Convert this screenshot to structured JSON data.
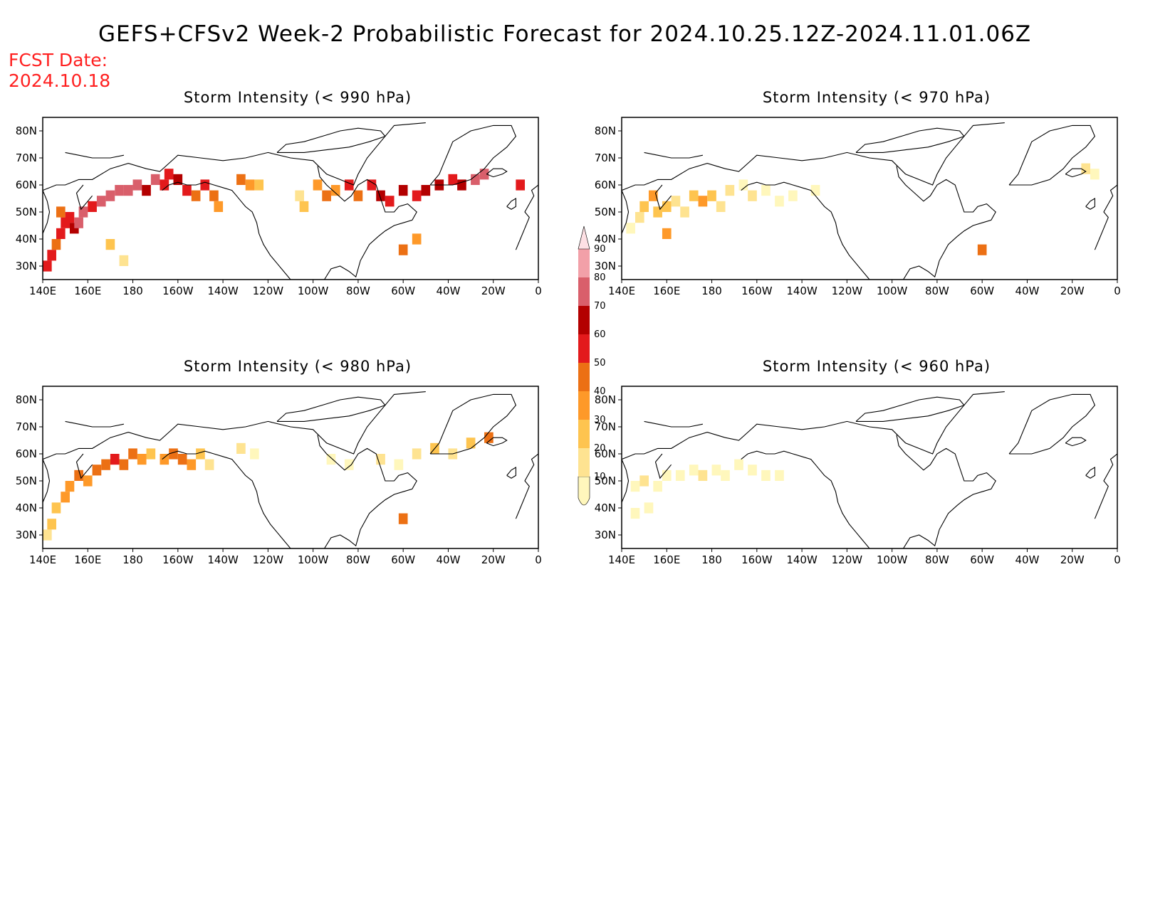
{
  "header": {
    "title": "GEFS+CFSv2 Week-2 Probabilistic Forecast for 2024.10.25.12Z-2024.11.01.06Z",
    "fcst_label": "FCST Date:",
    "fcst_value": "2024.10.18"
  },
  "axes": {
    "lon_labels": [
      "140E",
      "160E",
      "180",
      "160W",
      "140W",
      "120W",
      "100W",
      "80W",
      "60W",
      "40W",
      "20W",
      "0"
    ],
    "lat_labels": [
      "80N",
      "70N",
      "60N",
      "50N",
      "40N",
      "30N"
    ]
  },
  "legend": {
    "levels": [
      "10",
      "20",
      "30",
      "40",
      "50",
      "60",
      "70",
      "80",
      "90"
    ],
    "colors": [
      "#fff7bc",
      "#fee391",
      "#fec44f",
      "#fe9929",
      "#ec7014",
      "#e31a1c",
      "#b30000",
      "#d95f6b",
      "#f2a0a8",
      "#fde0e4"
    ]
  },
  "panels": [
    {
      "title": "Storm Intensity (< 990 hPa)"
    },
    {
      "title": "Storm Intensity (< 970 hPa)"
    },
    {
      "title": "Storm Intensity (< 980 hPa)"
    },
    {
      "title": "Storm Intensity (< 960 hPa)"
    }
  ],
  "chart_data": [
    {
      "type": "heatmap",
      "title": "Storm Intensity (< 990 hPa)",
      "x_range": [
        140,
        360
      ],
      "y_range": [
        25,
        85
      ],
      "cells": [
        {
          "lon": 142,
          "lat": 30,
          "v": 60
        },
        {
          "lon": 144,
          "lat": 34,
          "v": 60
        },
        {
          "lon": 146,
          "lat": 38,
          "v": 50
        },
        {
          "lon": 148,
          "lat": 42,
          "v": 60
        },
        {
          "lon": 150,
          "lat": 46,
          "v": 60
        },
        {
          "lon": 148,
          "lat": 50,
          "v": 50
        },
        {
          "lon": 152,
          "lat": 48,
          "v": 60
        },
        {
          "lon": 154,
          "lat": 44,
          "v": 70
        },
        {
          "lon": 156,
          "lat": 46,
          "v": 80
        },
        {
          "lon": 158,
          "lat": 50,
          "v": 80
        },
        {
          "lon": 162,
          "lat": 52,
          "v": 60
        },
        {
          "lon": 166,
          "lat": 54,
          "v": 80
        },
        {
          "lon": 170,
          "lat": 56,
          "v": 80
        },
        {
          "lon": 174,
          "lat": 58,
          "v": 80
        },
        {
          "lon": 178,
          "lat": 58,
          "v": 80
        },
        {
          "lon": 182,
          "lat": 60,
          "v": 80
        },
        {
          "lon": 186,
          "lat": 58,
          "v": 70
        },
        {
          "lon": 190,
          "lat": 62,
          "v": 80
        },
        {
          "lon": 194,
          "lat": 60,
          "v": 60
        },
        {
          "lon": 196,
          "lat": 64,
          "v": 60
        },
        {
          "lon": 200,
          "lat": 62,
          "v": 70
        },
        {
          "lon": 204,
          "lat": 58,
          "v": 60
        },
        {
          "lon": 208,
          "lat": 56,
          "v": 50
        },
        {
          "lon": 212,
          "lat": 60,
          "v": 60
        },
        {
          "lon": 216,
          "lat": 56,
          "v": 50
        },
        {
          "lon": 218,
          "lat": 52,
          "v": 40
        },
        {
          "lon": 228,
          "lat": 62,
          "v": 50
        },
        {
          "lon": 232,
          "lat": 60,
          "v": 40
        },
        {
          "lon": 236,
          "lat": 60,
          "v": 30
        },
        {
          "lon": 254,
          "lat": 56,
          "v": 20
        },
        {
          "lon": 256,
          "lat": 52,
          "v": 30
        },
        {
          "lon": 262,
          "lat": 60,
          "v": 40
        },
        {
          "lon": 266,
          "lat": 56,
          "v": 50
        },
        {
          "lon": 270,
          "lat": 58,
          "v": 40
        },
        {
          "lon": 276,
          "lat": 60,
          "v": 60
        },
        {
          "lon": 280,
          "lat": 56,
          "v": 50
        },
        {
          "lon": 286,
          "lat": 60,
          "v": 60
        },
        {
          "lon": 290,
          "lat": 56,
          "v": 70
        },
        {
          "lon": 294,
          "lat": 54,
          "v": 60
        },
        {
          "lon": 300,
          "lat": 58,
          "v": 70
        },
        {
          "lon": 306,
          "lat": 56,
          "v": 60
        },
        {
          "lon": 310,
          "lat": 58,
          "v": 70
        },
        {
          "lon": 316,
          "lat": 60,
          "v": 70
        },
        {
          "lon": 322,
          "lat": 62,
          "v": 60
        },
        {
          "lon": 326,
          "lat": 60,
          "v": 70
        },
        {
          "lon": 332,
          "lat": 62,
          "v": 80
        },
        {
          "lon": 336,
          "lat": 64,
          "v": 80
        },
        {
          "lon": 352,
          "lat": 60,
          "v": 60
        },
        {
          "lon": 306,
          "lat": 40,
          "v": 40
        },
        {
          "lon": 300,
          "lat": 36,
          "v": 50
        },
        {
          "lon": 176,
          "lat": 32,
          "v": 20
        },
        {
          "lon": 170,
          "lat": 38,
          "v": 30
        }
      ]
    },
    {
      "type": "heatmap",
      "title": "Storm Intensity (< 970 hPa)",
      "x_range": [
        140,
        360
      ],
      "y_range": [
        25,
        85
      ],
      "cells": [
        {
          "lon": 144,
          "lat": 44,
          "v": 10
        },
        {
          "lon": 148,
          "lat": 48,
          "v": 20
        },
        {
          "lon": 150,
          "lat": 52,
          "v": 30
        },
        {
          "lon": 154,
          "lat": 56,
          "v": 40
        },
        {
          "lon": 156,
          "lat": 50,
          "v": 30
        },
        {
          "lon": 160,
          "lat": 52,
          "v": 30
        },
        {
          "lon": 164,
          "lat": 54,
          "v": 20
        },
        {
          "lon": 168,
          "lat": 50,
          "v": 20
        },
        {
          "lon": 172,
          "lat": 56,
          "v": 30
        },
        {
          "lon": 176,
          "lat": 54,
          "v": 40
        },
        {
          "lon": 180,
          "lat": 56,
          "v": 30
        },
        {
          "lon": 184,
          "lat": 52,
          "v": 20
        },
        {
          "lon": 188,
          "lat": 58,
          "v": 20
        },
        {
          "lon": 194,
          "lat": 60,
          "v": 10
        },
        {
          "lon": 198,
          "lat": 56,
          "v": 20
        },
        {
          "lon": 204,
          "lat": 58,
          "v": 10
        },
        {
          "lon": 210,
          "lat": 54,
          "v": 10
        },
        {
          "lon": 216,
          "lat": 56,
          "v": 10
        },
        {
          "lon": 226,
          "lat": 58,
          "v": 10
        },
        {
          "lon": 346,
          "lat": 66,
          "v": 20
        },
        {
          "lon": 350,
          "lat": 64,
          "v": 10
        },
        {
          "lon": 300,
          "lat": 36,
          "v": 50
        },
        {
          "lon": 160,
          "lat": 42,
          "v": 40
        }
      ]
    },
    {
      "type": "heatmap",
      "title": "Storm Intensity (< 980 hPa)",
      "x_range": [
        140,
        360
      ],
      "y_range": [
        25,
        85
      ],
      "cells": [
        {
          "lon": 142,
          "lat": 30,
          "v": 20
        },
        {
          "lon": 144,
          "lat": 34,
          "v": 30
        },
        {
          "lon": 146,
          "lat": 40,
          "v": 30
        },
        {
          "lon": 150,
          "lat": 44,
          "v": 40
        },
        {
          "lon": 152,
          "lat": 48,
          "v": 40
        },
        {
          "lon": 156,
          "lat": 52,
          "v": 50
        },
        {
          "lon": 160,
          "lat": 50,
          "v": 40
        },
        {
          "lon": 164,
          "lat": 54,
          "v": 50
        },
        {
          "lon": 168,
          "lat": 56,
          "v": 50
        },
        {
          "lon": 172,
          "lat": 58,
          "v": 60
        },
        {
          "lon": 176,
          "lat": 56,
          "v": 50
        },
        {
          "lon": 180,
          "lat": 60,
          "v": 50
        },
        {
          "lon": 184,
          "lat": 58,
          "v": 40
        },
        {
          "lon": 188,
          "lat": 60,
          "v": 30
        },
        {
          "lon": 194,
          "lat": 58,
          "v": 40
        },
        {
          "lon": 198,
          "lat": 60,
          "v": 50
        },
        {
          "lon": 202,
          "lat": 58,
          "v": 50
        },
        {
          "lon": 206,
          "lat": 56,
          "v": 40
        },
        {
          "lon": 210,
          "lat": 60,
          "v": 30
        },
        {
          "lon": 214,
          "lat": 56,
          "v": 20
        },
        {
          "lon": 228,
          "lat": 62,
          "v": 20
        },
        {
          "lon": 234,
          "lat": 60,
          "v": 10
        },
        {
          "lon": 268,
          "lat": 58,
          "v": 10
        },
        {
          "lon": 276,
          "lat": 56,
          "v": 10
        },
        {
          "lon": 290,
          "lat": 58,
          "v": 20
        },
        {
          "lon": 298,
          "lat": 56,
          "v": 10
        },
        {
          "lon": 306,
          "lat": 60,
          "v": 20
        },
        {
          "lon": 314,
          "lat": 62,
          "v": 30
        },
        {
          "lon": 322,
          "lat": 60,
          "v": 20
        },
        {
          "lon": 330,
          "lat": 64,
          "v": 30
        },
        {
          "lon": 338,
          "lat": 66,
          "v": 50
        },
        {
          "lon": 300,
          "lat": 36,
          "v": 50
        }
      ]
    },
    {
      "type": "heatmap",
      "title": "Storm Intensity (< 960 hPa)",
      "x_range": [
        140,
        360
      ],
      "y_range": [
        25,
        85
      ],
      "cells": [
        {
          "lon": 146,
          "lat": 48,
          "v": 10
        },
        {
          "lon": 150,
          "lat": 50,
          "v": 20
        },
        {
          "lon": 156,
          "lat": 48,
          "v": 10
        },
        {
          "lon": 160,
          "lat": 52,
          "v": 10
        },
        {
          "lon": 166,
          "lat": 52,
          "v": 10
        },
        {
          "lon": 172,
          "lat": 54,
          "v": 10
        },
        {
          "lon": 176,
          "lat": 52,
          "v": 20
        },
        {
          "lon": 182,
          "lat": 54,
          "v": 10
        },
        {
          "lon": 186,
          "lat": 52,
          "v": 10
        },
        {
          "lon": 192,
          "lat": 56,
          "v": 10
        },
        {
          "lon": 198,
          "lat": 54,
          "v": 10
        },
        {
          "lon": 204,
          "lat": 52,
          "v": 10
        },
        {
          "lon": 210,
          "lat": 52,
          "v": 10
        },
        {
          "lon": 146,
          "lat": 38,
          "v": 10
        },
        {
          "lon": 152,
          "lat": 40,
          "v": 10
        }
      ]
    }
  ]
}
